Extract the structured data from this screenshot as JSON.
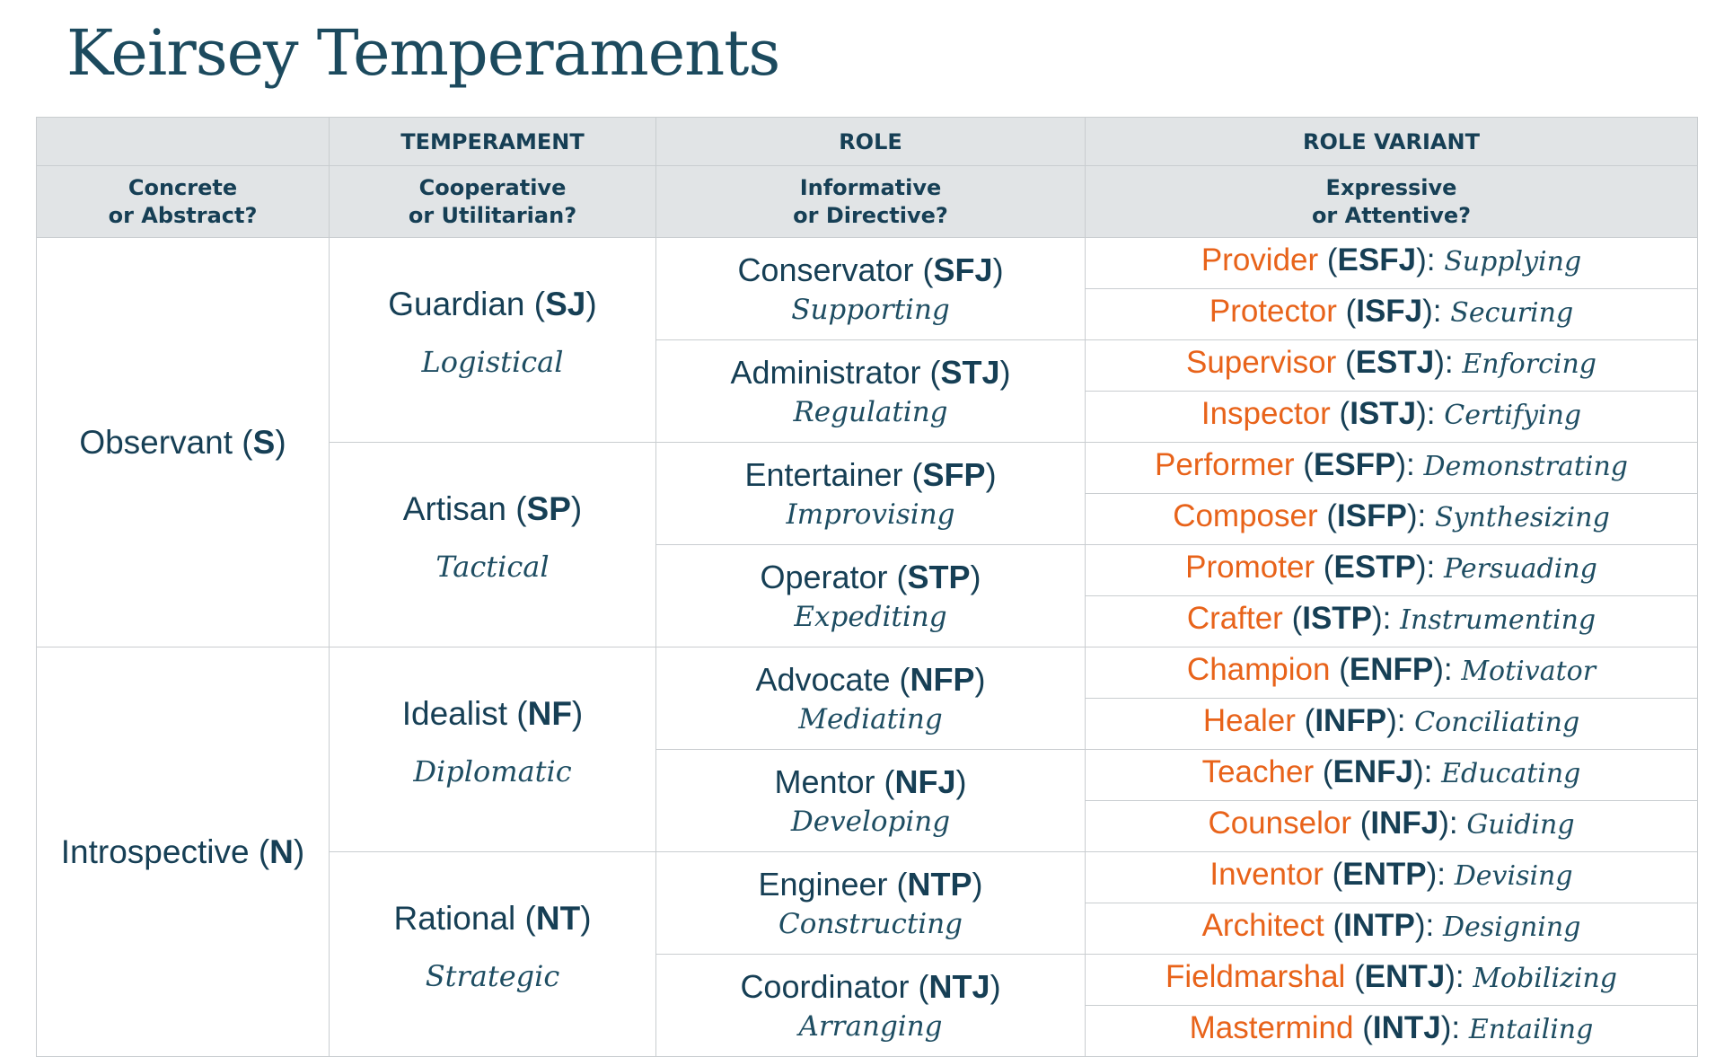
{
  "title": "Keirsey Temperaments",
  "header": {
    "row1": [
      "",
      "TEMPERAMENT",
      "ROLE",
      "ROLE VARIANT"
    ],
    "row2": [
      {
        "line1": "Concrete",
        "line2": "or Abstract?"
      },
      {
        "line1": "Cooperative",
        "line2": "or Utilitarian?"
      },
      {
        "line1": "Informative",
        "line2": "or Directive?"
      },
      {
        "line1": "Expressive",
        "line2": "or Attentive?"
      }
    ]
  },
  "groups": [
    {
      "name": "Observant",
      "code": "S",
      "temperaments": [
        {
          "name": "Guardian",
          "code": "SJ",
          "trait": "Logistical",
          "roles": [
            {
              "name": "Conservator",
              "code": "SFJ",
              "trait": "Supporting",
              "variants": [
                {
                  "name": "Provider",
                  "code": "ESFJ",
                  "trait": "Supplying"
                },
                {
                  "name": "Protector",
                  "code": "ISFJ",
                  "trait": "Securing"
                }
              ]
            },
            {
              "name": "Administrator",
              "code": "STJ",
              "trait": "Regulating",
              "variants": [
                {
                  "name": "Supervisor",
                  "code": "ESTJ",
                  "trait": "Enforcing"
                },
                {
                  "name": "Inspector",
                  "code": "ISTJ",
                  "trait": "Certifying"
                }
              ]
            }
          ]
        },
        {
          "name": "Artisan",
          "code": "SP",
          "trait": "Tactical",
          "roles": [
            {
              "name": "Entertainer",
              "code": "SFP",
              "trait": "Improvising",
              "variants": [
                {
                  "name": "Performer",
                  "code": "ESFP",
                  "trait": "Demonstrating"
                },
                {
                  "name": "Composer",
                  "code": "ISFP",
                  "trait": "Synthesizing"
                }
              ]
            },
            {
              "name": "Operator",
              "code": "STP",
              "trait": "Expediting",
              "variants": [
                {
                  "name": "Promoter",
                  "code": "ESTP",
                  "trait": "Persuading"
                },
                {
                  "name": "Crafter",
                  "code": "ISTP",
                  "trait": "Instrumenting"
                }
              ]
            }
          ]
        }
      ]
    },
    {
      "name": "Introspective",
      "code": "N",
      "temperaments": [
        {
          "name": "Idealist",
          "code": "NF",
          "trait": "Diplomatic",
          "roles": [
            {
              "name": "Advocate",
              "code": "NFP",
              "trait": "Mediating",
              "variants": [
                {
                  "name": "Champion",
                  "code": "ENFP",
                  "trait": "Motivator"
                },
                {
                  "name": "Healer",
                  "code": "INFP",
                  "trait": "Conciliating"
                }
              ]
            },
            {
              "name": "Mentor",
              "code": "NFJ",
              "trait": "Developing",
              "variants": [
                {
                  "name": "Teacher",
                  "code": "ENFJ",
                  "trait": "Educating"
                },
                {
                  "name": "Counselor",
                  "code": "INFJ",
                  "trait": "Guiding"
                }
              ]
            }
          ]
        },
        {
          "name": "Rational",
          "code": "NT",
          "trait": "Strategic",
          "roles": [
            {
              "name": "Engineer",
              "code": "NTP",
              "trait": "Constructing",
              "variants": [
                {
                  "name": "Inventor",
                  "code": "ENTP",
                  "trait": "Devising"
                },
                {
                  "name": "Architect",
                  "code": "INTP",
                  "trait": "Designing"
                }
              ]
            },
            {
              "name": "Coordinator",
              "code": "NTJ",
              "trait": "Arranging",
              "variants": [
                {
                  "name": "Fieldmarshal",
                  "code": "ENTJ",
                  "trait": "Mobilizing"
                },
                {
                  "name": "Mastermind",
                  "code": "INTJ",
                  "trait": "Entailing"
                }
              ]
            }
          ]
        }
      ]
    }
  ]
}
